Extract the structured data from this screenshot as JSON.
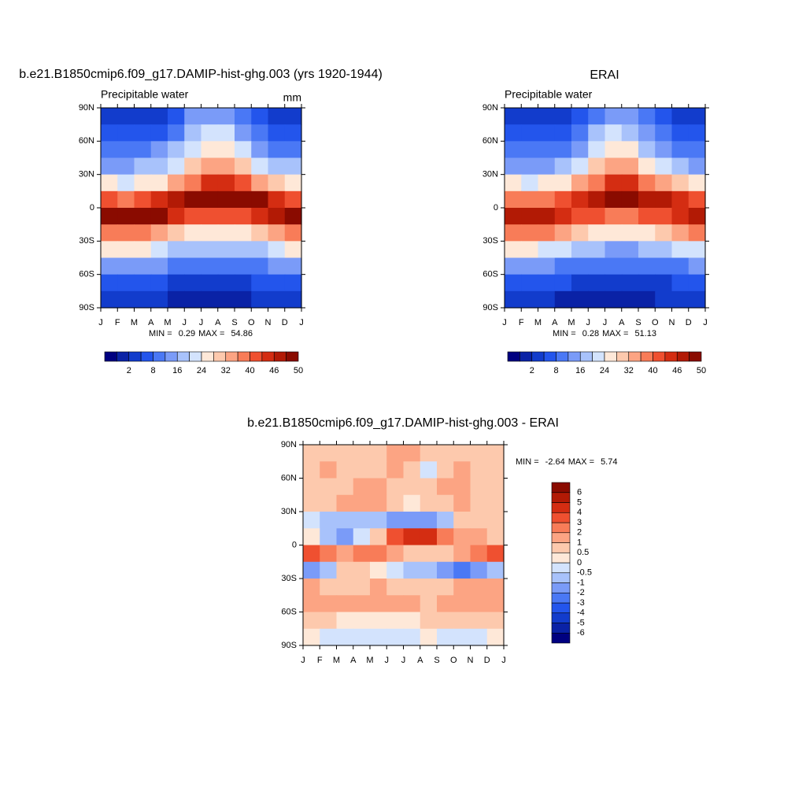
{
  "chart_data": [
    {
      "type": "heatmap",
      "title": "b.e21.B1850cmip6.f09_g17.DAMIP-hist-ghg.003 (yrs 1920-1944)",
      "subtitle": "Precipitable water",
      "units": "mm",
      "xticks": [
        "J",
        "F",
        "M",
        "A",
        "M",
        "J",
        "J",
        "A",
        "S",
        "O",
        "N",
        "D",
        "J"
      ],
      "y": [
        82.5,
        67.5,
        52.5,
        37.5,
        22.5,
        7.5,
        -7.5,
        -22.5,
        -37.5,
        -52.5,
        -67.5,
        -82.5
      ],
      "ylim": [
        -90,
        90
      ],
      "yticks": [
        {
          "value": 90,
          "label": "90N"
        },
        {
          "value": 60,
          "label": "60N"
        },
        {
          "value": 30,
          "label": "30N"
        },
        0,
        {
          "value": -30,
          "label": "30S"
        },
        {
          "value": -60,
          "label": "60S"
        },
        {
          "value": -90,
          "label": "90S"
        }
      ],
      "values": [
        [
          3,
          3,
          3,
          4,
          7,
          12,
          15,
          14,
          9,
          5,
          4,
          3
        ],
        [
          5,
          5,
          5,
          7,
          11,
          17,
          22,
          20,
          14,
          9,
          6,
          5
        ],
        [
          9,
          9,
          10,
          12,
          16,
          22,
          27,
          26,
          20,
          14,
          11,
          9
        ],
        [
          15,
          15,
          16,
          19,
          23,
          29,
          34,
          33,
          28,
          22,
          18,
          16
        ],
        [
          24,
          23,
          24,
          27,
          32,
          39,
          44,
          44,
          40,
          34,
          29,
          26
        ],
        [
          40,
          39,
          40,
          43,
          47,
          50,
          52,
          52,
          50,
          48,
          45,
          42
        ],
        [
          50,
          50,
          50,
          48,
          44,
          41,
          40,
          40,
          42,
          44,
          47,
          50
        ],
        [
          38,
          39,
          38,
          35,
          31,
          27,
          25,
          25,
          27,
          30,
          34,
          37
        ],
        [
          25,
          25,
          24,
          22,
          19,
          17,
          16,
          16,
          17,
          19,
          22,
          24
        ],
        [
          14,
          14,
          13,
          12,
          11,
          10,
          9,
          9,
          10,
          11,
          12,
          13
        ],
        [
          7,
          7,
          6,
          5,
          4,
          4,
          3,
          3,
          4,
          5,
          6,
          7
        ],
        [
          3,
          3,
          2,
          2,
          1,
          1,
          1,
          1,
          1,
          2,
          2,
          3
        ]
      ],
      "min_label": "MIN =",
      "min": 0.29,
      "max_label": "MAX =",
      "max": 54.86,
      "colorbar": {
        "orientation": "horizontal",
        "colors": [
          "#000080",
          "#0a22a6",
          "#123ccc",
          "#2355ec",
          "#4a78f5",
          "#7a9bf8",
          "#a8c2fb",
          "#d3e3fd",
          "#fee8d8",
          "#fdc9ad",
          "#fca483",
          "#f87c58",
          "#ef5030",
          "#d42d12",
          "#b21a05",
          "#8a0b00"
        ],
        "ticks": [
          2,
          8,
          16,
          24,
          32,
          40,
          46,
          50
        ]
      }
    },
    {
      "type": "heatmap",
      "title": "ERAI",
      "subtitle": "Precipitable water",
      "xticks": [
        "J",
        "F",
        "M",
        "A",
        "M",
        "J",
        "J",
        "A",
        "S",
        "O",
        "N",
        "D",
        "J"
      ],
      "y": [
        82.5,
        67.5,
        52.5,
        37.5,
        22.5,
        7.5,
        -7.5,
        -22.5,
        -37.5,
        -52.5,
        -67.5,
        -82.5
      ],
      "ylim": [
        -90,
        90
      ],
      "yticks": [
        {
          "value": 90,
          "label": "90N"
        },
        {
          "value": 60,
          "label": "60N"
        },
        {
          "value": 30,
          "label": "30N"
        },
        0,
        {
          "value": -30,
          "label": "30S"
        },
        {
          "value": -60,
          "label": "60S"
        },
        {
          "value": -90,
          "label": "90S"
        }
      ],
      "values": [
        [
          3,
          3,
          3,
          4,
          6,
          11,
          14,
          13,
          9,
          5,
          4,
          3
        ],
        [
          5,
          5,
          5,
          6,
          10,
          16,
          21,
          19,
          13,
          8,
          6,
          5
        ],
        [
          8,
          8,
          9,
          11,
          15,
          21,
          26,
          25,
          19,
          13,
          10,
          8
        ],
        [
          14,
          14,
          15,
          18,
          22,
          28,
          33,
          32,
          27,
          21,
          17,
          15
        ],
        [
          24,
          23,
          24,
          27,
          32,
          39,
          43,
          43,
          39,
          33,
          28,
          26
        ],
        [
          39,
          38,
          39,
          42,
          45,
          47,
          48,
          48,
          47,
          46,
          43,
          40
        ],
        [
          46,
          46,
          46,
          45,
          42,
          40,
          39,
          39,
          40,
          42,
          44,
          46
        ],
        [
          38,
          39,
          38,
          34,
          30,
          27,
          25,
          25,
          27,
          31,
          34,
          37
        ],
        [
          24,
          24,
          23,
          21,
          18,
          16,
          15,
          15,
          16,
          18,
          21,
          23
        ],
        [
          13,
          13,
          12,
          11,
          10,
          9,
          8,
          8,
          9,
          10,
          11,
          12
        ],
        [
          6,
          6,
          6,
          5,
          4,
          3,
          3,
          3,
          4,
          4,
          5,
          6
        ],
        [
          3,
          2,
          2,
          1,
          1,
          1,
          1,
          1,
          1,
          2,
          2,
          3
        ]
      ],
      "min_label": "MIN =",
      "min": 0.28,
      "max_label": "MAX =",
      "max": 51.13,
      "colorbar": {
        "orientation": "horizontal",
        "colors": [
          "#000080",
          "#0a22a6",
          "#123ccc",
          "#2355ec",
          "#4a78f5",
          "#7a9bf8",
          "#a8c2fb",
          "#d3e3fd",
          "#fee8d8",
          "#fdc9ad",
          "#fca483",
          "#f87c58",
          "#ef5030",
          "#d42d12",
          "#b21a05",
          "#8a0b00"
        ],
        "ticks": [
          2,
          8,
          16,
          24,
          32,
          40,
          46,
          50
        ]
      }
    },
    {
      "type": "heatmap",
      "title": "b.e21.B1850cmip6.f09_g17.DAMIP-hist-ghg.003 - ERAI",
      "xticks": [
        "J",
        "F",
        "M",
        "A",
        "M",
        "J",
        "J",
        "A",
        "S",
        "O",
        "N",
        "D",
        "J"
      ],
      "y": [
        82.5,
        67.5,
        52.5,
        37.5,
        22.5,
        7.5,
        -7.5,
        -22.5,
        -37.5,
        -52.5,
        -67.5,
        -82.5
      ],
      "ylim": [
        -90,
        90
      ],
      "yticks": [
        {
          "value": 90,
          "label": "90N"
        },
        {
          "value": 60,
          "label": "60N"
        },
        {
          "value": 30,
          "label": "30N"
        },
        0,
        {
          "value": -30,
          "label": "30S"
        },
        {
          "value": -60,
          "label": "60S"
        },
        {
          "value": -90,
          "label": "90S"
        }
      ],
      "values": [
        [
          0.8,
          0.7,
          0.6,
          0.5,
          0.9,
          1.2,
          1.0,
          0.6,
          0.5,
          0.7,
          0.8,
          0.7
        ],
        [
          0.6,
          1.2,
          0.8,
          0.7,
          0.9,
          1.1,
          0.6,
          -0.3,
          0.7,
          1.0,
          0.7,
          0.5
        ],
        [
          0.5,
          0.7,
          0.9,
          1.1,
          1.3,
          0.8,
          0.6,
          0.9,
          1.2,
          1.0,
          0.7,
          0.6
        ],
        [
          0.8,
          0.9,
          1.0,
          1.2,
          1.0,
          0.7,
          0.4,
          0.5,
          0.9,
          1.1,
          0.9,
          0.7
        ],
        [
          -0.3,
          -0.6,
          -1.0,
          -0.8,
          -0.7,
          -1.2,
          -2.0,
          -1.8,
          -0.6,
          0.6,
          0.8,
          0.5
        ],
        [
          0.3,
          -0.8,
          -1.5,
          -0.4,
          0.8,
          3.0,
          4.5,
          4.0,
          2.5,
          1.5,
          1.0,
          0.8
        ],
        [
          3.5,
          2.5,
          1.5,
          2.5,
          2.0,
          1.2,
          0.8,
          0.6,
          0.9,
          1.5,
          2.0,
          3.0
        ],
        [
          -1.5,
          -0.6,
          0.5,
          0.6,
          0.3,
          -0.3,
          -0.6,
          -1.0,
          -1.5,
          -2.5,
          -2.0,
          -0.8
        ],
        [
          1.2,
          0.8,
          0.6,
          0.8,
          1.0,
          0.7,
          0.5,
          0.6,
          0.8,
          1.0,
          1.3,
          1.5
        ],
        [
          1.5,
          1.3,
          1.0,
          1.2,
          1.5,
          1.2,
          1.0,
          0.8,
          1.0,
          1.3,
          1.5,
          1.6
        ],
        [
          0.8,
          0.6,
          0.4,
          0.3,
          0.2,
          0.3,
          0.4,
          0.5,
          0.6,
          0.8,
          0.9,
          0.8
        ],
        [
          0.3,
          -0.2,
          -0.3,
          -0.3,
          -0.2,
          -0.2,
          -0.1,
          0.1,
          -0.2,
          -0.3,
          -0.2,
          0.2
        ]
      ],
      "min_label": "MIN =",
      "min": -2.64,
      "max_label": "MAX =",
      "max": 5.74,
      "colorbar": {
        "orientation": "vertical",
        "colors": [
          "#000080",
          "#0a22a6",
          "#123ccc",
          "#2355ec",
          "#4a78f5",
          "#7a9bf8",
          "#a8c2fb",
          "#d3e3fd",
          "#fee8d8",
          "#fdc9ad",
          "#fca483",
          "#f87c58",
          "#ef5030",
          "#d42d12",
          "#b21a05",
          "#8a0b00"
        ],
        "ticks": [
          -6,
          -5,
          -4,
          -3,
          -2,
          -1,
          -0.5,
          0,
          0.5,
          1,
          2,
          3,
          4,
          5,
          6
        ]
      }
    }
  ]
}
